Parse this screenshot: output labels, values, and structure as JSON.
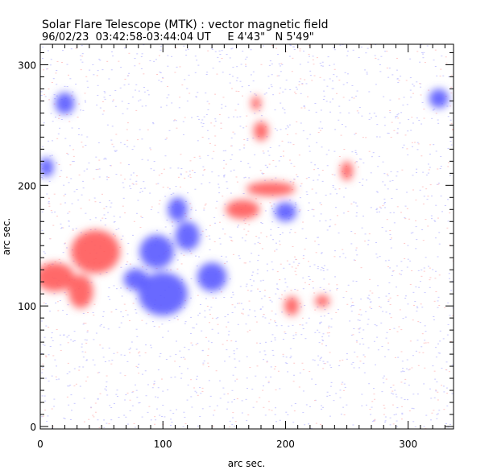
{
  "chart_data": {
    "type": "heatmap",
    "title": "Solar Flare Telescope (MTK) : vector magnetic field",
    "subtitle": "96/02/23  03:42:58-03:44:04 UT     E 4'43\"   N 5'49\"",
    "xlabel": "arc sec.",
    "ylabel": "arc sec.",
    "xlim": [
      0,
      337
    ],
    "ylim": [
      -2,
      317
    ],
    "xticks": [
      0,
      100,
      200,
      300
    ],
    "yticks": [
      0,
      100,
      200,
      300
    ],
    "colors": {
      "positive": "#ff5a5a",
      "negative": "#5a5aff"
    },
    "regions": [
      {
        "polarity": "positive",
        "x": 45,
        "y": 145,
        "rx": 20,
        "ry": 18
      },
      {
        "polarity": "positive",
        "x": 12,
        "y": 124,
        "rx": 16,
        "ry": 12
      },
      {
        "polarity": "positive",
        "x": 33,
        "y": 112,
        "rx": 10,
        "ry": 14
      },
      {
        "polarity": "positive",
        "x": 165,
        "y": 180,
        "rx": 14,
        "ry": 8
      },
      {
        "polarity": "positive",
        "x": 188,
        "y": 197,
        "rx": 20,
        "ry": 6
      },
      {
        "polarity": "positive",
        "x": 230,
        "y": 104,
        "rx": 6,
        "ry": 5
      },
      {
        "polarity": "positive",
        "x": 205,
        "y": 100,
        "rx": 6,
        "ry": 8
      },
      {
        "polarity": "positive",
        "x": 180,
        "y": 245,
        "rx": 6,
        "ry": 8
      },
      {
        "polarity": "positive",
        "x": 176,
        "y": 268,
        "rx": 4,
        "ry": 6
      },
      {
        "polarity": "positive",
        "x": 250,
        "y": 212,
        "rx": 5,
        "ry": 8
      },
      {
        "polarity": "negative",
        "x": 200,
        "y": 178,
        "rx": 9,
        "ry": 8
      },
      {
        "polarity": "negative",
        "x": 95,
        "y": 145,
        "rx": 14,
        "ry": 14
      },
      {
        "polarity": "negative",
        "x": 100,
        "y": 110,
        "rx": 20,
        "ry": 18
      },
      {
        "polarity": "negative",
        "x": 78,
        "y": 122,
        "rx": 10,
        "ry": 9
      },
      {
        "polarity": "negative",
        "x": 140,
        "y": 124,
        "rx": 12,
        "ry": 12
      },
      {
        "polarity": "negative",
        "x": 120,
        "y": 158,
        "rx": 10,
        "ry": 12
      },
      {
        "polarity": "negative",
        "x": 112,
        "y": 180,
        "rx": 8,
        "ry": 10
      },
      {
        "polarity": "negative",
        "x": 20,
        "y": 268,
        "rx": 8,
        "ry": 9
      },
      {
        "polarity": "negative",
        "x": 325,
        "y": 272,
        "rx": 8,
        "ry": 8
      },
      {
        "polarity": "negative",
        "x": 5,
        "y": 215,
        "rx": 6,
        "ry": 8
      }
    ]
  }
}
